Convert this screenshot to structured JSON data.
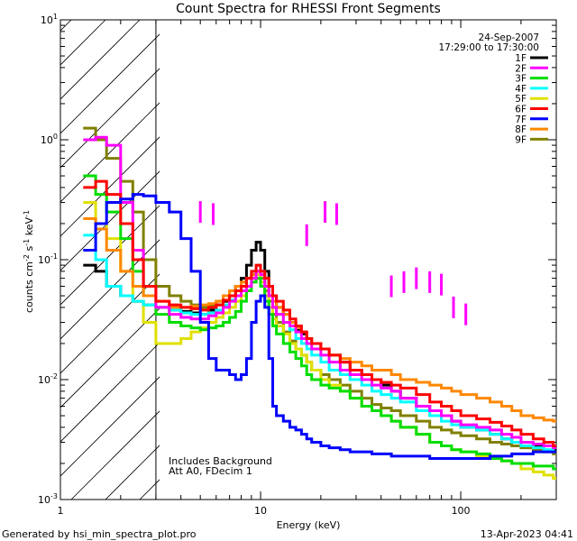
{
  "chart_data": {
    "type": "line",
    "title": "Count Spectra for RHESSI Front Segments",
    "xlabel": "Energy (keV)",
    "ylabel_base": "counts cm",
    "ylabel_exp1": "-2",
    "ylabel_mid": " s",
    "ylabel_exp2": "-1",
    "ylabel_end": " keV",
    "ylabel_exp3": "-1",
    "x_scale": "log",
    "y_scale": "log",
    "xlim": [
      1,
      300
    ],
    "ylim": [
      0.001,
      10
    ],
    "x_ticks": [
      {
        "value": 1,
        "label": "1"
      },
      {
        "value": 10,
        "label": "10"
      },
      {
        "value": 100,
        "label": "100"
      }
    ],
    "y_ticks": [
      {
        "value": 0.001,
        "base": "10",
        "exp": "-3"
      },
      {
        "value": 0.01,
        "base": "10",
        "exp": "-2"
      },
      {
        "value": 0.1,
        "base": "10",
        "exp": "-1"
      },
      {
        "value": 1,
        "base": "10",
        "exp": "0"
      },
      {
        "value": 10,
        "base": "10",
        "exp": "1"
      }
    ],
    "hatched_region_keV": [
      1,
      3
    ],
    "date": "24-Sep-2007",
    "time_range": "17:29:00 to 17:30:00",
    "annotation_lines": [
      "Includes Background",
      "Att A0, FDecim 1"
    ],
    "footer_left": "Generated by hsi_min_spectra_plot.pro",
    "footer_right": "13-Apr-2023 04:41",
    "series": [
      {
        "name": "1F",
        "color": "#000000",
        "x": [
          1.3,
          1.5,
          1.7,
          2.0,
          2.3,
          2.6,
          3.0,
          3.5,
          4.0,
          4.5,
          5.0,
          5.5,
          6.0,
          6.5,
          7.0,
          7.5,
          8.0,
          8.5,
          9.0,
          9.5,
          10,
          10.5,
          11,
          11.5,
          12,
          13,
          14,
          15,
          16,
          17,
          18,
          20,
          22,
          25,
          28,
          32,
          36,
          40,
          45,
          50,
          60,
          70,
          80,
          90,
          100,
          120,
          140,
          160,
          180,
          200,
          230,
          260,
          290
        ],
        "y": [
          0.09,
          0.08,
          0.06,
          0.05,
          0.045,
          0.042,
          0.04,
          0.038,
          0.037,
          0.036,
          0.035,
          0.038,
          0.042,
          0.045,
          0.05,
          0.06,
          0.07,
          0.09,
          0.12,
          0.14,
          0.12,
          0.08,
          0.06,
          0.05,
          0.04,
          0.035,
          0.03,
          0.026,
          0.024,
          0.022,
          0.02,
          0.018,
          0.016,
          0.014,
          0.012,
          0.011,
          0.01,
          0.009,
          0.008,
          0.007,
          0.006,
          0.0055,
          0.005,
          0.0045,
          0.004,
          0.0038,
          0.0035,
          0.0032,
          0.003,
          0.003,
          0.0028,
          0.0028,
          0.0026
        ]
      },
      {
        "name": "2F",
        "color": "#ff00ff",
        "x": [
          1.3,
          1.5,
          1.7,
          2.0,
          2.3,
          2.6,
          3.0,
          3.5,
          4.0,
          4.5,
          5.0,
          5.5,
          6.0,
          6.5,
          7.0,
          7.5,
          8.0,
          8.5,
          9.0,
          9.5,
          10,
          10.5,
          11,
          11.5,
          12,
          13,
          14,
          15,
          16,
          17,
          18,
          20,
          22,
          25,
          28,
          32,
          36,
          40,
          45,
          50,
          60,
          70,
          80,
          90,
          100,
          120,
          140,
          160,
          180,
          200,
          230,
          260,
          290
        ],
        "y": [
          1.0,
          1.05,
          0.9,
          0.3,
          0.12,
          0.06,
          0.04,
          0.035,
          0.033,
          0.032,
          0.032,
          0.034,
          0.036,
          0.04,
          0.045,
          0.05,
          0.055,
          0.06,
          0.07,
          0.08,
          0.075,
          0.06,
          0.05,
          0.04,
          0.035,
          0.03,
          0.028,
          0.025,
          0.022,
          0.02,
          0.018,
          0.016,
          0.014,
          0.012,
          0.011,
          0.01,
          0.009,
          0.0085,
          0.008,
          0.007,
          0.006,
          0.0055,
          0.005,
          0.0045,
          0.0042,
          0.004,
          0.0038,
          0.0035,
          0.0033,
          0.003,
          0.0029,
          0.0028,
          0.0027
        ]
      },
      {
        "name": "3F",
        "color": "#00dd00",
        "x": [
          1.3,
          1.5,
          1.7,
          2.0,
          2.3,
          2.6,
          3.0,
          3.5,
          4.0,
          4.5,
          5.0,
          5.5,
          6.0,
          6.5,
          7.0,
          7.5,
          8.0,
          8.5,
          9.0,
          9.5,
          10,
          10.5,
          11,
          11.5,
          12,
          13,
          14,
          15,
          16,
          17,
          18,
          20,
          22,
          25,
          28,
          32,
          36,
          40,
          45,
          50,
          60,
          70,
          80,
          90,
          100,
          120,
          140,
          160,
          180,
          200,
          230,
          260,
          290
        ],
        "y": [
          0.5,
          0.35,
          0.25,
          0.15,
          0.08,
          0.05,
          0.035,
          0.03,
          0.028,
          0.027,
          0.026,
          0.027,
          0.028,
          0.03,
          0.033,
          0.037,
          0.045,
          0.055,
          0.065,
          0.07,
          0.06,
          0.045,
          0.035,
          0.028,
          0.024,
          0.02,
          0.017,
          0.015,
          0.013,
          0.011,
          0.01,
          0.009,
          0.0085,
          0.008,
          0.007,
          0.006,
          0.0055,
          0.005,
          0.0045,
          0.004,
          0.0035,
          0.003,
          0.0028,
          0.0026,
          0.0025,
          0.0024,
          0.0022,
          0.0021,
          0.002,
          0.002,
          0.0019,
          0.0019,
          0.0018
        ]
      },
      {
        "name": "4F",
        "color": "#00ffff",
        "x": [
          1.3,
          1.5,
          1.7,
          2.0,
          2.3,
          2.6,
          3.0,
          3.5,
          4.0,
          4.5,
          5.0,
          5.5,
          6.0,
          6.5,
          7.0,
          7.5,
          8.0,
          8.5,
          9.0,
          9.5,
          10,
          10.5,
          11,
          11.5,
          12,
          13,
          14,
          15,
          16,
          17,
          18,
          20,
          22,
          25,
          28,
          32,
          36,
          40,
          45,
          50,
          60,
          70,
          80,
          90,
          100,
          120,
          140,
          160,
          180,
          200,
          230,
          260,
          290
        ],
        "y": [
          0.16,
          0.1,
          0.06,
          0.05,
          0.045,
          0.042,
          0.04,
          0.038,
          0.036,
          0.035,
          0.035,
          0.036,
          0.038,
          0.042,
          0.046,
          0.05,
          0.06,
          0.07,
          0.08,
          0.09,
          0.08,
          0.06,
          0.05,
          0.04,
          0.035,
          0.03,
          0.026,
          0.022,
          0.02,
          0.018,
          0.016,
          0.014,
          0.012,
          0.011,
          0.01,
          0.009,
          0.008,
          0.0075,
          0.007,
          0.0065,
          0.0055,
          0.005,
          0.0045,
          0.0042,
          0.004,
          0.0038,
          0.0035,
          0.0032,
          0.003,
          0.0028,
          0.0027,
          0.0026,
          0.0025
        ]
      },
      {
        "name": "5F",
        "color": "#e0e000",
        "x": [
          1.3,
          1.5,
          1.7,
          2.0,
          2.3,
          2.6,
          3.0,
          3.5,
          4.0,
          4.5,
          5.0,
          5.5,
          6.0,
          6.5,
          7.0,
          7.5,
          8.0,
          8.5,
          9.0,
          9.5,
          10,
          10.5,
          11,
          11.5,
          12,
          13,
          14,
          15,
          16,
          17,
          18,
          20,
          22,
          25,
          28,
          32,
          36,
          40,
          45,
          50,
          60,
          70,
          80,
          90,
          100,
          120,
          140,
          160,
          180,
          200,
          230,
          260,
          290
        ],
        "y": [
          0.3,
          0.2,
          0.15,
          0.08,
          0.045,
          0.03,
          0.02,
          0.02,
          0.022,
          0.025,
          0.027,
          0.03,
          0.033,
          0.036,
          0.04,
          0.045,
          0.05,
          0.06,
          0.07,
          0.075,
          0.065,
          0.05,
          0.04,
          0.032,
          0.028,
          0.024,
          0.02,
          0.018,
          0.016,
          0.014,
          0.012,
          0.01,
          0.009,
          0.008,
          0.007,
          0.006,
          0.0055,
          0.005,
          0.0045,
          0.004,
          0.0035,
          0.003,
          0.0028,
          0.0026,
          0.0025,
          0.0023,
          0.0022,
          0.0021,
          0.002,
          0.0018,
          0.0017,
          0.0016,
          0.0015
        ]
      },
      {
        "name": "6F",
        "color": "#ff0000",
        "x": [
          1.3,
          1.5,
          1.7,
          2.0,
          2.3,
          2.6,
          3.0,
          3.5,
          4.0,
          4.5,
          5.0,
          5.5,
          6.0,
          6.5,
          7.0,
          7.5,
          8.0,
          8.5,
          9.0,
          9.5,
          10,
          10.5,
          11,
          11.5,
          12,
          13,
          14,
          15,
          16,
          17,
          18,
          20,
          22,
          25,
          28,
          32,
          36,
          40,
          45,
          50,
          60,
          70,
          80,
          90,
          100,
          120,
          140,
          160,
          180,
          200,
          230,
          260,
          290
        ],
        "y": [
          0.4,
          0.45,
          0.35,
          0.2,
          0.1,
          0.06,
          0.045,
          0.042,
          0.04,
          0.039,
          0.038,
          0.04,
          0.042,
          0.046,
          0.05,
          0.055,
          0.06,
          0.07,
          0.08,
          0.09,
          0.08,
          0.07,
          0.06,
          0.05,
          0.045,
          0.038,
          0.032,
          0.028,
          0.025,
          0.022,
          0.02,
          0.018,
          0.016,
          0.014,
          0.012,
          0.011,
          0.01,
          0.0095,
          0.009,
          0.0085,
          0.0075,
          0.0065,
          0.006,
          0.0055,
          0.005,
          0.0047,
          0.0044,
          0.0041,
          0.0038,
          0.0035,
          0.0032,
          0.003,
          0.0028
        ]
      },
      {
        "name": "7F",
        "color": "#0000ff",
        "x": [
          1.3,
          1.5,
          1.7,
          2.0,
          2.3,
          2.6,
          3.0,
          3.5,
          4.0,
          4.5,
          5.0,
          5.5,
          6.0,
          6.5,
          7.0,
          7.5,
          8.0,
          8.5,
          9.0,
          9.5,
          10,
          10.5,
          11,
          11.5,
          12,
          13,
          14,
          15,
          16,
          17,
          18,
          20,
          22,
          25,
          28,
          32,
          36,
          40,
          45,
          50,
          60,
          70,
          80,
          90,
          100,
          120,
          140,
          160,
          180,
          200,
          230,
          260,
          290
        ],
        "y": [
          0.12,
          0.2,
          0.3,
          0.32,
          0.35,
          0.34,
          0.3,
          0.25,
          0.15,
          0.08,
          0.03,
          0.015,
          0.012,
          0.012,
          0.011,
          0.01,
          0.011,
          0.015,
          0.03,
          0.045,
          0.05,
          0.04,
          0.015,
          0.006,
          0.005,
          0.0045,
          0.004,
          0.0038,
          0.0035,
          0.0032,
          0.003,
          0.0028,
          0.0027,
          0.0026,
          0.0025,
          0.0025,
          0.0024,
          0.0024,
          0.0023,
          0.0023,
          0.0023,
          0.0022,
          0.0022,
          0.0022,
          0.0022,
          0.0022,
          0.0023,
          0.0023,
          0.0024,
          0.0024,
          0.0025,
          0.0025,
          0.0025
        ]
      },
      {
        "name": "8F",
        "color": "#ff8800",
        "x": [
          1.3,
          1.5,
          1.7,
          2.0,
          2.3,
          2.6,
          3.0,
          3.5,
          4.0,
          4.5,
          5.0,
          5.5,
          6.0,
          6.5,
          7.0,
          7.5,
          8.0,
          8.5,
          9.0,
          9.5,
          10,
          10.5,
          11,
          11.5,
          12,
          13,
          14,
          15,
          16,
          17,
          18,
          20,
          22,
          25,
          28,
          32,
          36,
          40,
          45,
          50,
          60,
          70,
          80,
          90,
          100,
          120,
          140,
          160,
          180,
          200,
          230,
          260,
          290
        ],
        "y": [
          0.22,
          0.18,
          0.12,
          0.08,
          0.06,
          0.05,
          0.045,
          0.04,
          0.04,
          0.041,
          0.042,
          0.043,
          0.045,
          0.05,
          0.055,
          0.06,
          0.065,
          0.07,
          0.075,
          0.08,
          0.075,
          0.06,
          0.05,
          0.045,
          0.04,
          0.035,
          0.03,
          0.027,
          0.025,
          0.022,
          0.02,
          0.018,
          0.016,
          0.015,
          0.014,
          0.013,
          0.012,
          0.012,
          0.011,
          0.01,
          0.0095,
          0.009,
          0.0085,
          0.008,
          0.0075,
          0.007,
          0.0065,
          0.006,
          0.0055,
          0.005,
          0.0048,
          0.0046,
          0.0045
        ]
      },
      {
        "name": "9F",
        "color": "#808000",
        "x": [
          1.3,
          1.5,
          1.7,
          2.0,
          2.3,
          2.6,
          3.0,
          3.5,
          4.0,
          4.5,
          5.0,
          5.5,
          6.0,
          6.5,
          7.0,
          7.5,
          8.0,
          8.5,
          9.0,
          9.5,
          10,
          10.5,
          11,
          11.5,
          12,
          13,
          14,
          15,
          16,
          17,
          18,
          20,
          22,
          25,
          28,
          32,
          36,
          40,
          45,
          50,
          60,
          70,
          80,
          90,
          100,
          120,
          140,
          160,
          180,
          200,
          230,
          260,
          290
        ],
        "y": [
          1.25,
          1.0,
          0.7,
          0.45,
          0.25,
          0.1,
          0.06,
          0.05,
          0.045,
          0.042,
          0.04,
          0.042,
          0.045,
          0.05,
          0.055,
          0.06,
          0.065,
          0.07,
          0.075,
          0.08,
          0.07,
          0.055,
          0.045,
          0.035,
          0.03,
          0.025,
          0.021,
          0.018,
          0.016,
          0.014,
          0.012,
          0.011,
          0.01,
          0.009,
          0.008,
          0.007,
          0.0062,
          0.0058,
          0.0055,
          0.005,
          0.0045,
          0.004,
          0.0038,
          0.0036,
          0.0034,
          0.0032,
          0.003,
          0.0029,
          0.0028,
          0.0027,
          0.0026,
          0.0025,
          0.0024
        ]
      }
    ],
    "extra_points": {
      "name": "2F",
      "color": "#ff00ff",
      "x": [
        5.0,
        5.8,
        17,
        21,
        24,
        45,
        52,
        60,
        70,
        80,
        92,
        106
      ],
      "y": [
        0.25,
        0.24,
        0.16,
        0.25,
        0.24,
        0.06,
        0.065,
        0.07,
        0.065,
        0.062,
        0.04,
        0.035
      ]
    }
  }
}
